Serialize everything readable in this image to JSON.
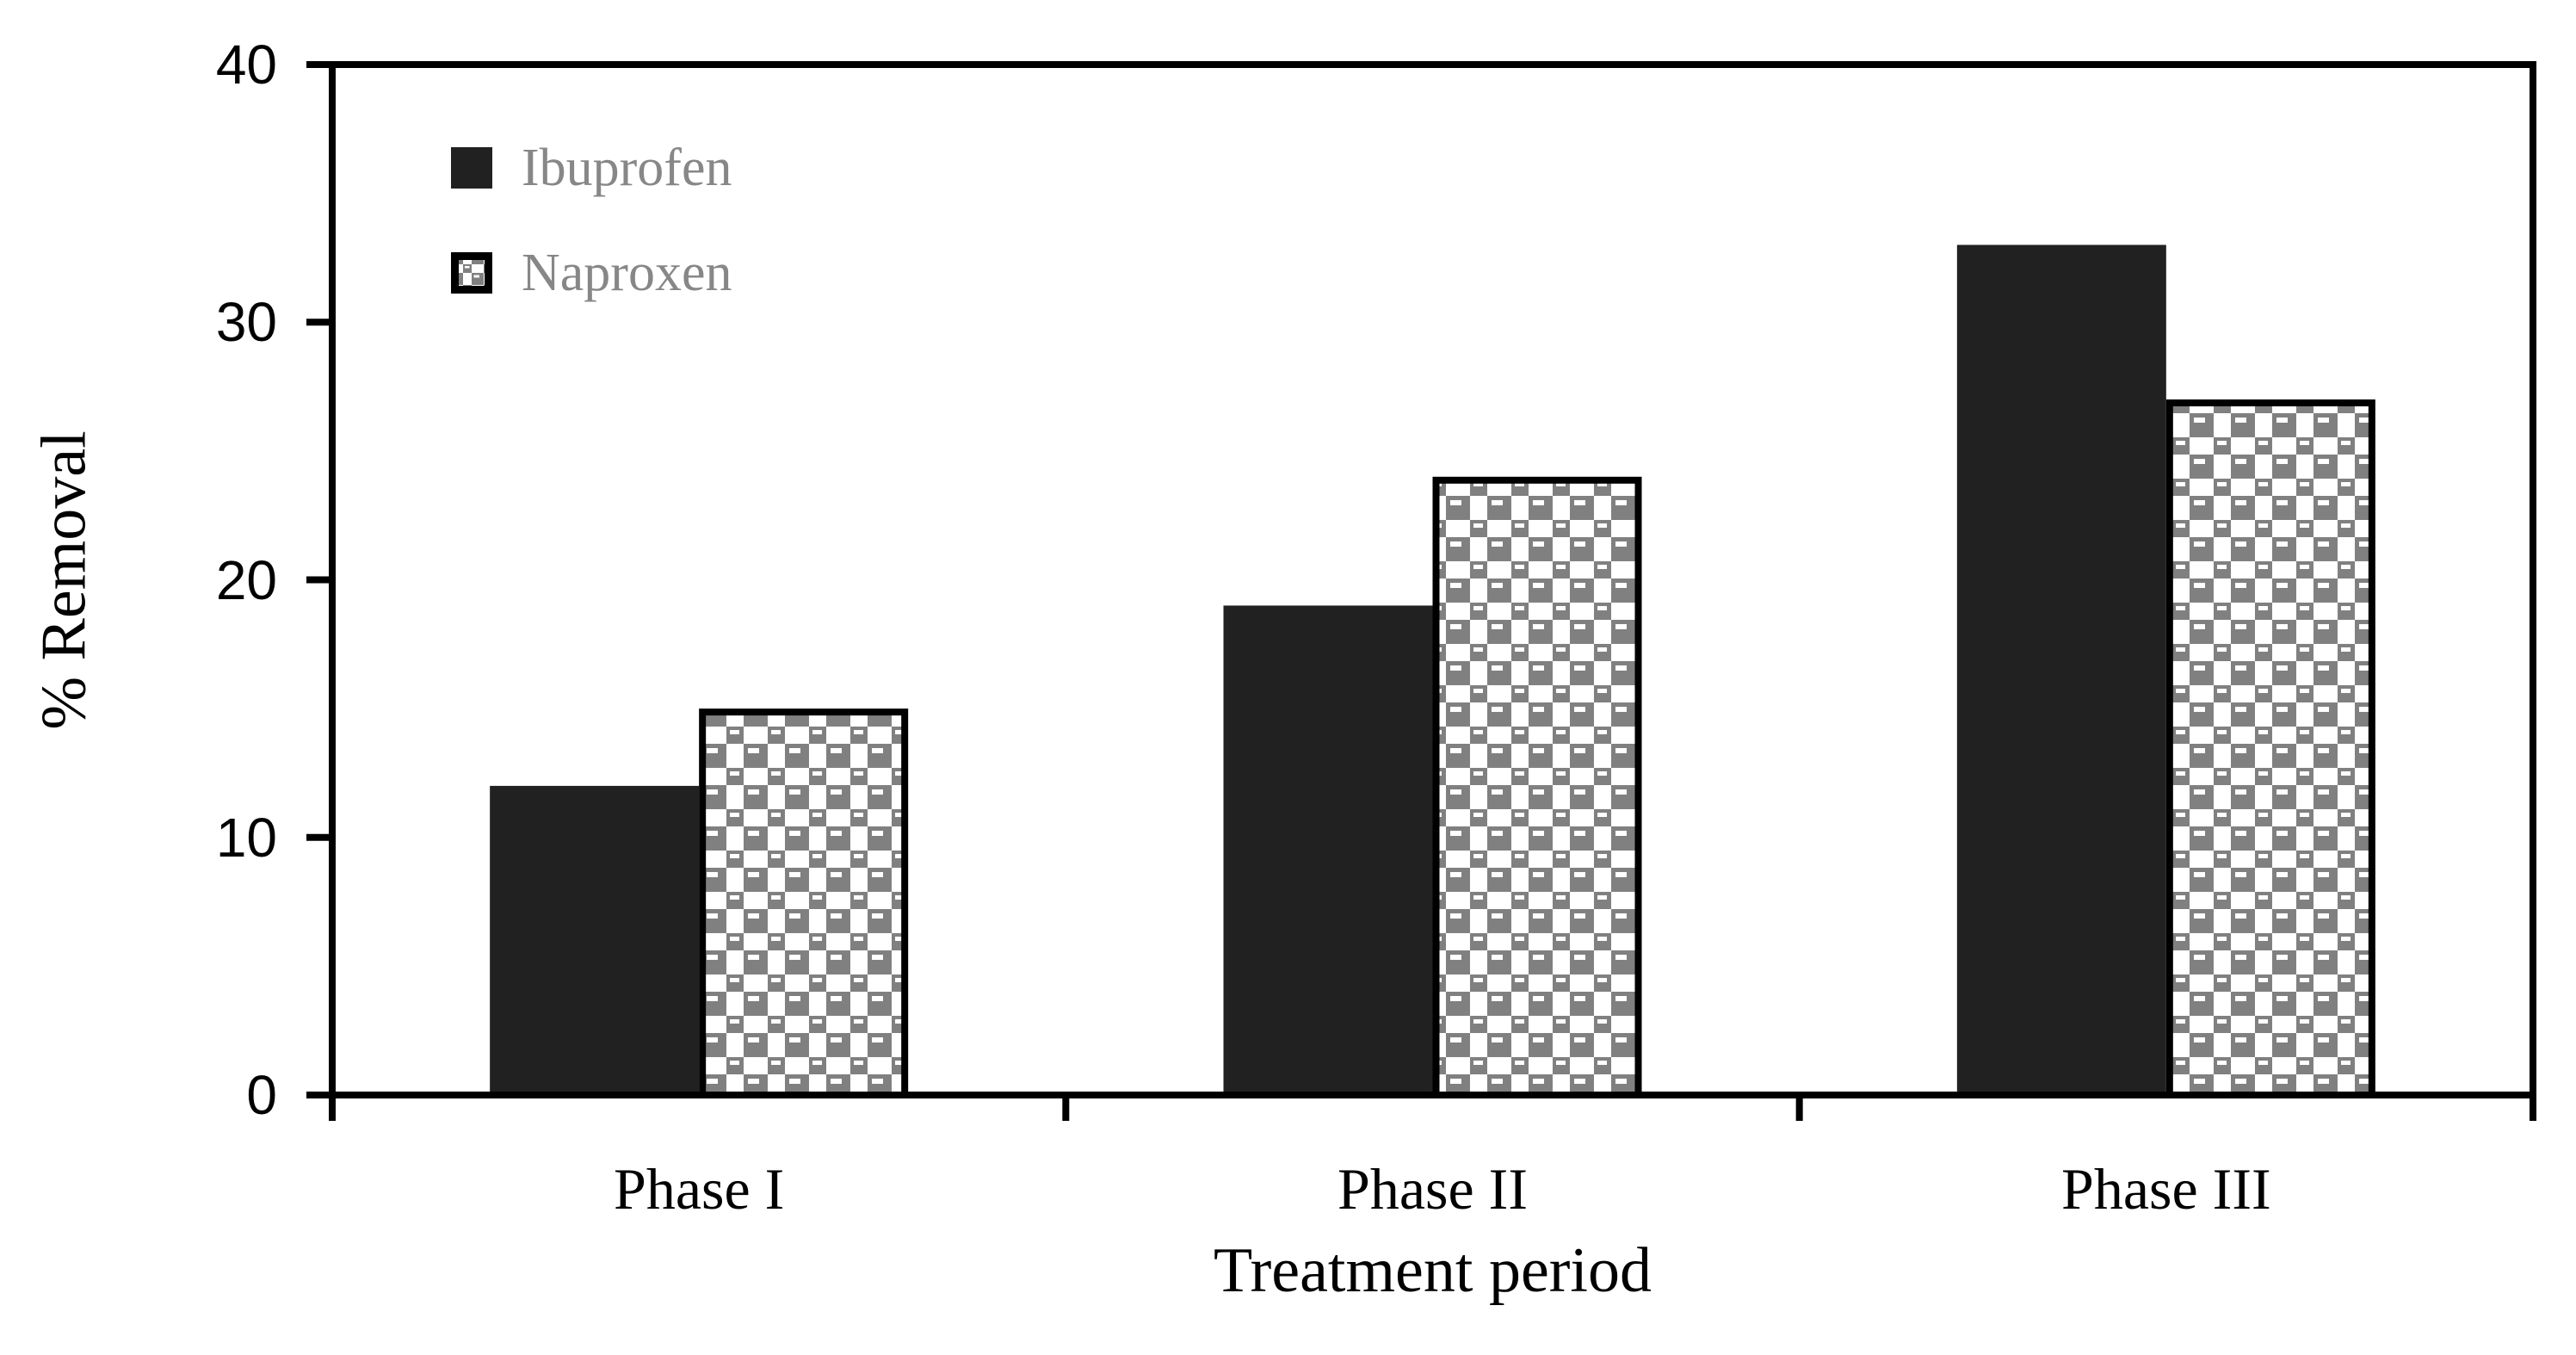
{
  "chart_data": {
    "type": "bar",
    "title": "",
    "xlabel": "Treatment period",
    "ylabel": "% Removal",
    "categories": [
      "Phase I",
      "Phase II",
      "Phase III"
    ],
    "series": [
      {
        "name": "Ibuprofen",
        "values": [
          12,
          19,
          33
        ],
        "fill": "solid",
        "color": "#212121"
      },
      {
        "name": "Naproxen",
        "values": [
          15,
          24,
          27
        ],
        "fill": "pattern-sphere",
        "pattern_fg": "#808080",
        "pattern_bg": "#ffffff",
        "border_color": "#000000"
      }
    ],
    "ylim": [
      0,
      40
    ],
    "yticks": [
      0,
      10,
      20,
      30,
      40
    ],
    "grid": false,
    "legend_position": "top-left-inside",
    "legend_text_color": "#878787",
    "axis_color": "#000000"
  }
}
